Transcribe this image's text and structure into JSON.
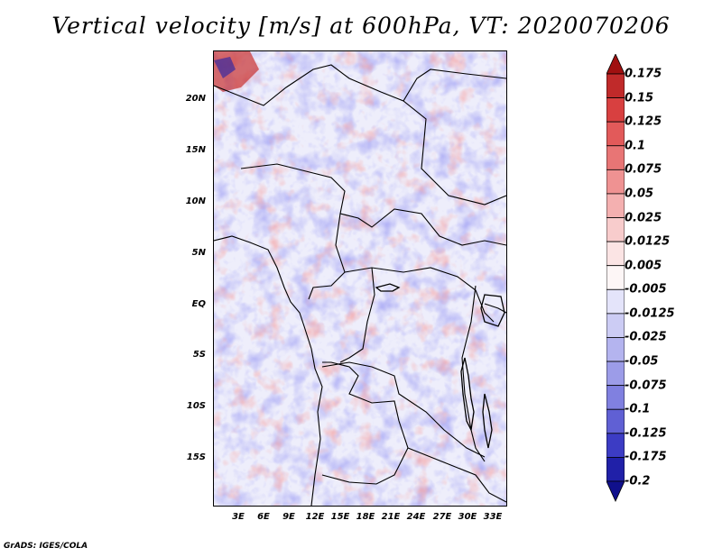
{
  "title": "Vertical velocity [m/s] at 600hPa, VT: 2020070206",
  "footer": "GrADS: IGES/COLA",
  "map": {
    "variable": "Vertical velocity",
    "units": "m/s",
    "level": "600hPa",
    "valid_time": "2020070206",
    "lat_labels": [
      "20N",
      "15N",
      "10N",
      "5N",
      "EQ",
      "5S",
      "10S",
      "15S"
    ],
    "lon_labels": [
      "3E",
      "6E",
      "9E",
      "12E",
      "15E",
      "18E",
      "21E",
      "24E",
      "27E",
      "30E",
      "33E"
    ],
    "lat_range": [
      -20,
      24.5
    ],
    "lon_range": [
      0,
      34.5
    ]
  },
  "colorbar": {
    "labels": [
      "0.175",
      "0.15",
      "0.125",
      "0.1",
      "0.075",
      "0.05",
      "0.025",
      "0.0125",
      "0.005",
      "-0.005",
      "-0.0125",
      "-0.025",
      "-0.05",
      "-0.075",
      "-0.1",
      "-0.125",
      "-0.175",
      "-0.2"
    ],
    "colors": [
      "#a01010",
      "#c02a2a",
      "#d84040",
      "#e25a5a",
      "#e87575",
      "#ef9292",
      "#f4b0b0",
      "#f8cccc",
      "#fbe4e4",
      "#fdf6f6",
      "#e4e4fa",
      "#ccccf4",
      "#b4b4ef",
      "#9c9ce8",
      "#8080e0",
      "#6060d4",
      "#3c3cc4",
      "#2020a8",
      "#10108c"
    ]
  }
}
